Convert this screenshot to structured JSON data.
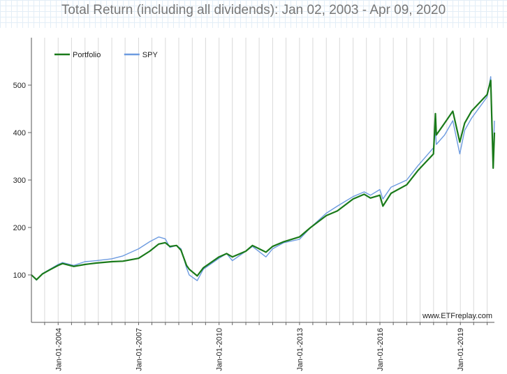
{
  "chart_data": {
    "type": "line",
    "title": "Total Return (including all dividends): Jan 02, 2003 - Apr 09, 2020",
    "xlabel": "",
    "ylabel": "",
    "xlim": [
      "2003-01-02",
      "2020-04-09"
    ],
    "ylim": [
      0,
      600
    ],
    "y_ticks": [
      100,
      200,
      300,
      400,
      500
    ],
    "x_ticks": [
      "Jan-01-2004",
      "Jan-01-2007",
      "Jan-01-2010",
      "Jan-01-2013",
      "Jan-01-2016",
      "Jan-01-2019"
    ],
    "grid": true,
    "legend_position": "top-left",
    "watermark": "www.ETFreplay.com",
    "series": [
      {
        "name": "Portfolio",
        "color": "#1a7a1a",
        "points": [
          [
            "2003-01-02",
            100
          ],
          [
            "2003-03-12",
            90
          ],
          [
            "2003-06-01",
            102
          ],
          [
            "2003-09-01",
            110
          ],
          [
            "2003-12-31",
            120
          ],
          [
            "2004-03-01",
            124
          ],
          [
            "2004-08-01",
            118
          ],
          [
            "2004-12-31",
            122
          ],
          [
            "2005-06-01",
            125
          ],
          [
            "2005-12-31",
            128
          ],
          [
            "2006-06-01",
            129
          ],
          [
            "2006-12-31",
            135
          ],
          [
            "2007-06-01",
            150
          ],
          [
            "2007-10-01",
            165
          ],
          [
            "2007-12-31",
            168
          ],
          [
            "2008-03-01",
            160
          ],
          [
            "2008-06-01",
            162
          ],
          [
            "2008-08-01",
            152
          ],
          [
            "2008-10-15",
            120
          ],
          [
            "2008-11-20",
            112
          ],
          [
            "2009-03-09",
            98
          ],
          [
            "2009-06-01",
            115
          ],
          [
            "2009-12-31",
            138
          ],
          [
            "2010-04-15",
            145
          ],
          [
            "2010-07-01",
            138
          ],
          [
            "2010-12-31",
            150
          ],
          [
            "2011-04-01",
            162
          ],
          [
            "2011-10-01",
            148
          ],
          [
            "2011-12-31",
            160
          ],
          [
            "2012-06-01",
            170
          ],
          [
            "2012-12-31",
            180
          ],
          [
            "2013-06-01",
            200
          ],
          [
            "2013-12-31",
            225
          ],
          [
            "2014-06-01",
            235
          ],
          [
            "2014-12-31",
            260
          ],
          [
            "2015-06-01",
            270
          ],
          [
            "2015-08-25",
            262
          ],
          [
            "2015-12-31",
            268
          ],
          [
            "2016-02-11",
            245
          ],
          [
            "2016-06-01",
            272
          ],
          [
            "2016-12-31",
            290
          ],
          [
            "2017-06-01",
            320
          ],
          [
            "2017-12-31",
            355
          ],
          [
            "2018-01-26",
            440
          ],
          [
            "2018-02-08",
            395
          ],
          [
            "2018-06-01",
            420
          ],
          [
            "2018-09-20",
            445
          ],
          [
            "2018-12-24",
            380
          ],
          [
            "2019-03-01",
            420
          ],
          [
            "2019-06-01",
            445
          ],
          [
            "2019-12-31",
            480
          ],
          [
            "2020-02-19",
            510
          ],
          [
            "2020-03-23",
            325
          ],
          [
            "2020-04-09",
            400
          ]
        ]
      },
      {
        "name": "SPY",
        "color": "#6d9be0",
        "points": [
          [
            "2003-01-02",
            100
          ],
          [
            "2003-03-12",
            89
          ],
          [
            "2003-06-01",
            103
          ],
          [
            "2003-09-01",
            111
          ],
          [
            "2003-12-31",
            122
          ],
          [
            "2004-03-01",
            126
          ],
          [
            "2004-08-01",
            120
          ],
          [
            "2004-12-31",
            128
          ],
          [
            "2005-06-01",
            130
          ],
          [
            "2005-12-31",
            134
          ],
          [
            "2006-06-01",
            140
          ],
          [
            "2006-12-31",
            155
          ],
          [
            "2007-06-01",
            170
          ],
          [
            "2007-10-01",
            180
          ],
          [
            "2007-12-31",
            176
          ],
          [
            "2008-03-01",
            158
          ],
          [
            "2008-06-01",
            162
          ],
          [
            "2008-08-01",
            155
          ],
          [
            "2008-10-15",
            115
          ],
          [
            "2008-11-20",
            100
          ],
          [
            "2009-03-09",
            88
          ],
          [
            "2009-06-01",
            112
          ],
          [
            "2009-12-31",
            135
          ],
          [
            "2010-04-15",
            145
          ],
          [
            "2010-07-01",
            130
          ],
          [
            "2010-12-31",
            150
          ],
          [
            "2011-04-01",
            160
          ],
          [
            "2011-10-01",
            138
          ],
          [
            "2011-12-31",
            155
          ],
          [
            "2012-06-01",
            168
          ],
          [
            "2012-12-31",
            175
          ],
          [
            "2013-06-01",
            200
          ],
          [
            "2013-12-31",
            230
          ],
          [
            "2014-06-01",
            245
          ],
          [
            "2014-12-31",
            265
          ],
          [
            "2015-06-01",
            275
          ],
          [
            "2015-08-25",
            268
          ],
          [
            "2015-12-31",
            280
          ],
          [
            "2016-02-11",
            260
          ],
          [
            "2016-06-01",
            285
          ],
          [
            "2016-12-31",
            300
          ],
          [
            "2017-06-01",
            330
          ],
          [
            "2017-12-31",
            368
          ],
          [
            "2018-01-26",
            405
          ],
          [
            "2018-02-08",
            375
          ],
          [
            "2018-06-01",
            395
          ],
          [
            "2018-09-20",
            425
          ],
          [
            "2018-12-24",
            355
          ],
          [
            "2019-03-01",
            405
          ],
          [
            "2019-06-01",
            430
          ],
          [
            "2019-12-31",
            475
          ],
          [
            "2020-02-19",
            518
          ],
          [
            "2020-03-23",
            340
          ],
          [
            "2020-04-09",
            425
          ]
        ]
      }
    ]
  }
}
